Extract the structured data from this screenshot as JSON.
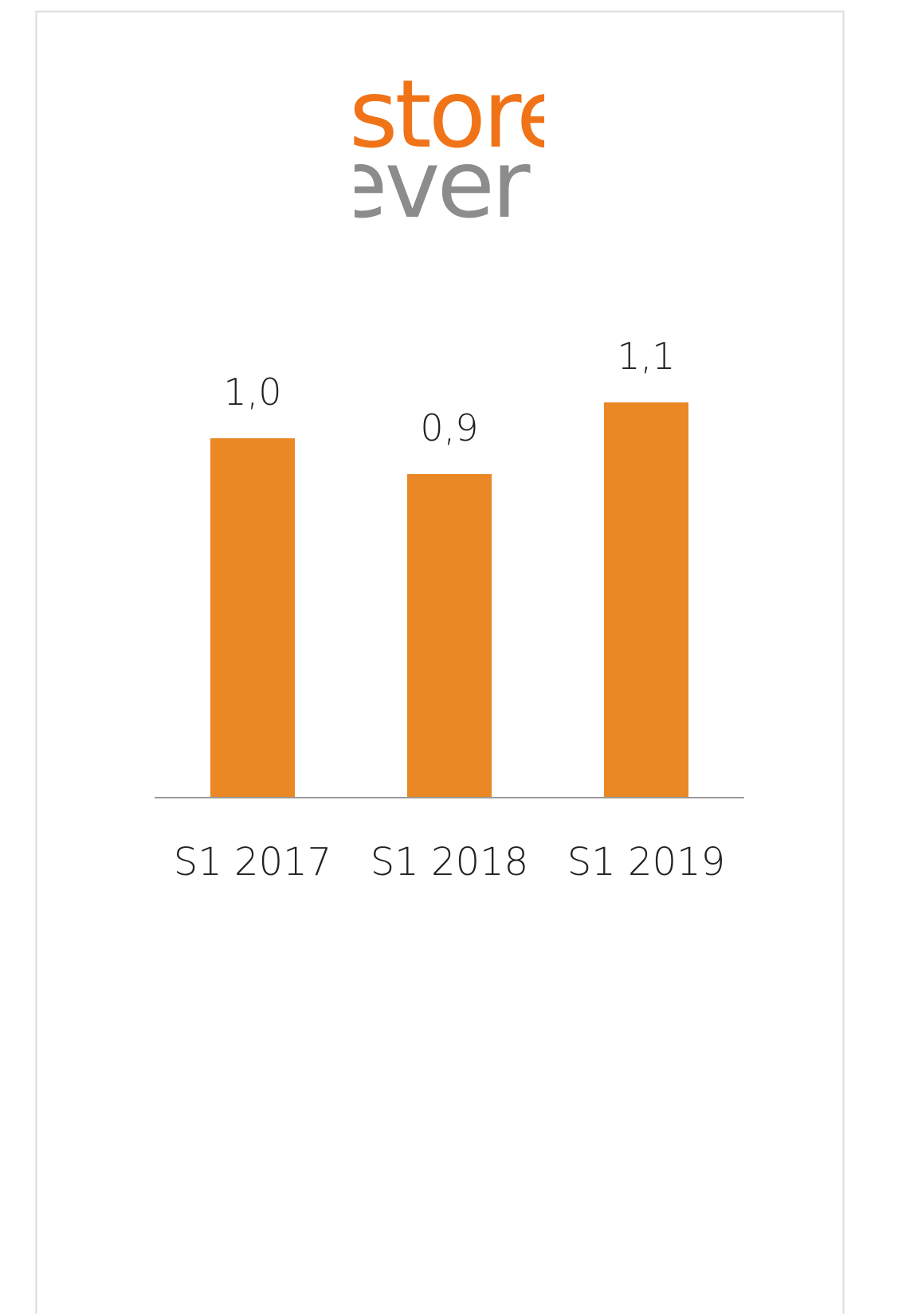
{
  "logo": {
    "top": "store",
    "bottom": "ever"
  },
  "chart_data": {
    "type": "bar",
    "categories": [
      "S1 2017",
      "S1 2018",
      "S1 2019"
    ],
    "values": [
      1.0,
      0.9,
      1.1
    ],
    "value_labels": [
      "1,0",
      "0,9",
      "1,1"
    ],
    "color": "#e98825"
  }
}
